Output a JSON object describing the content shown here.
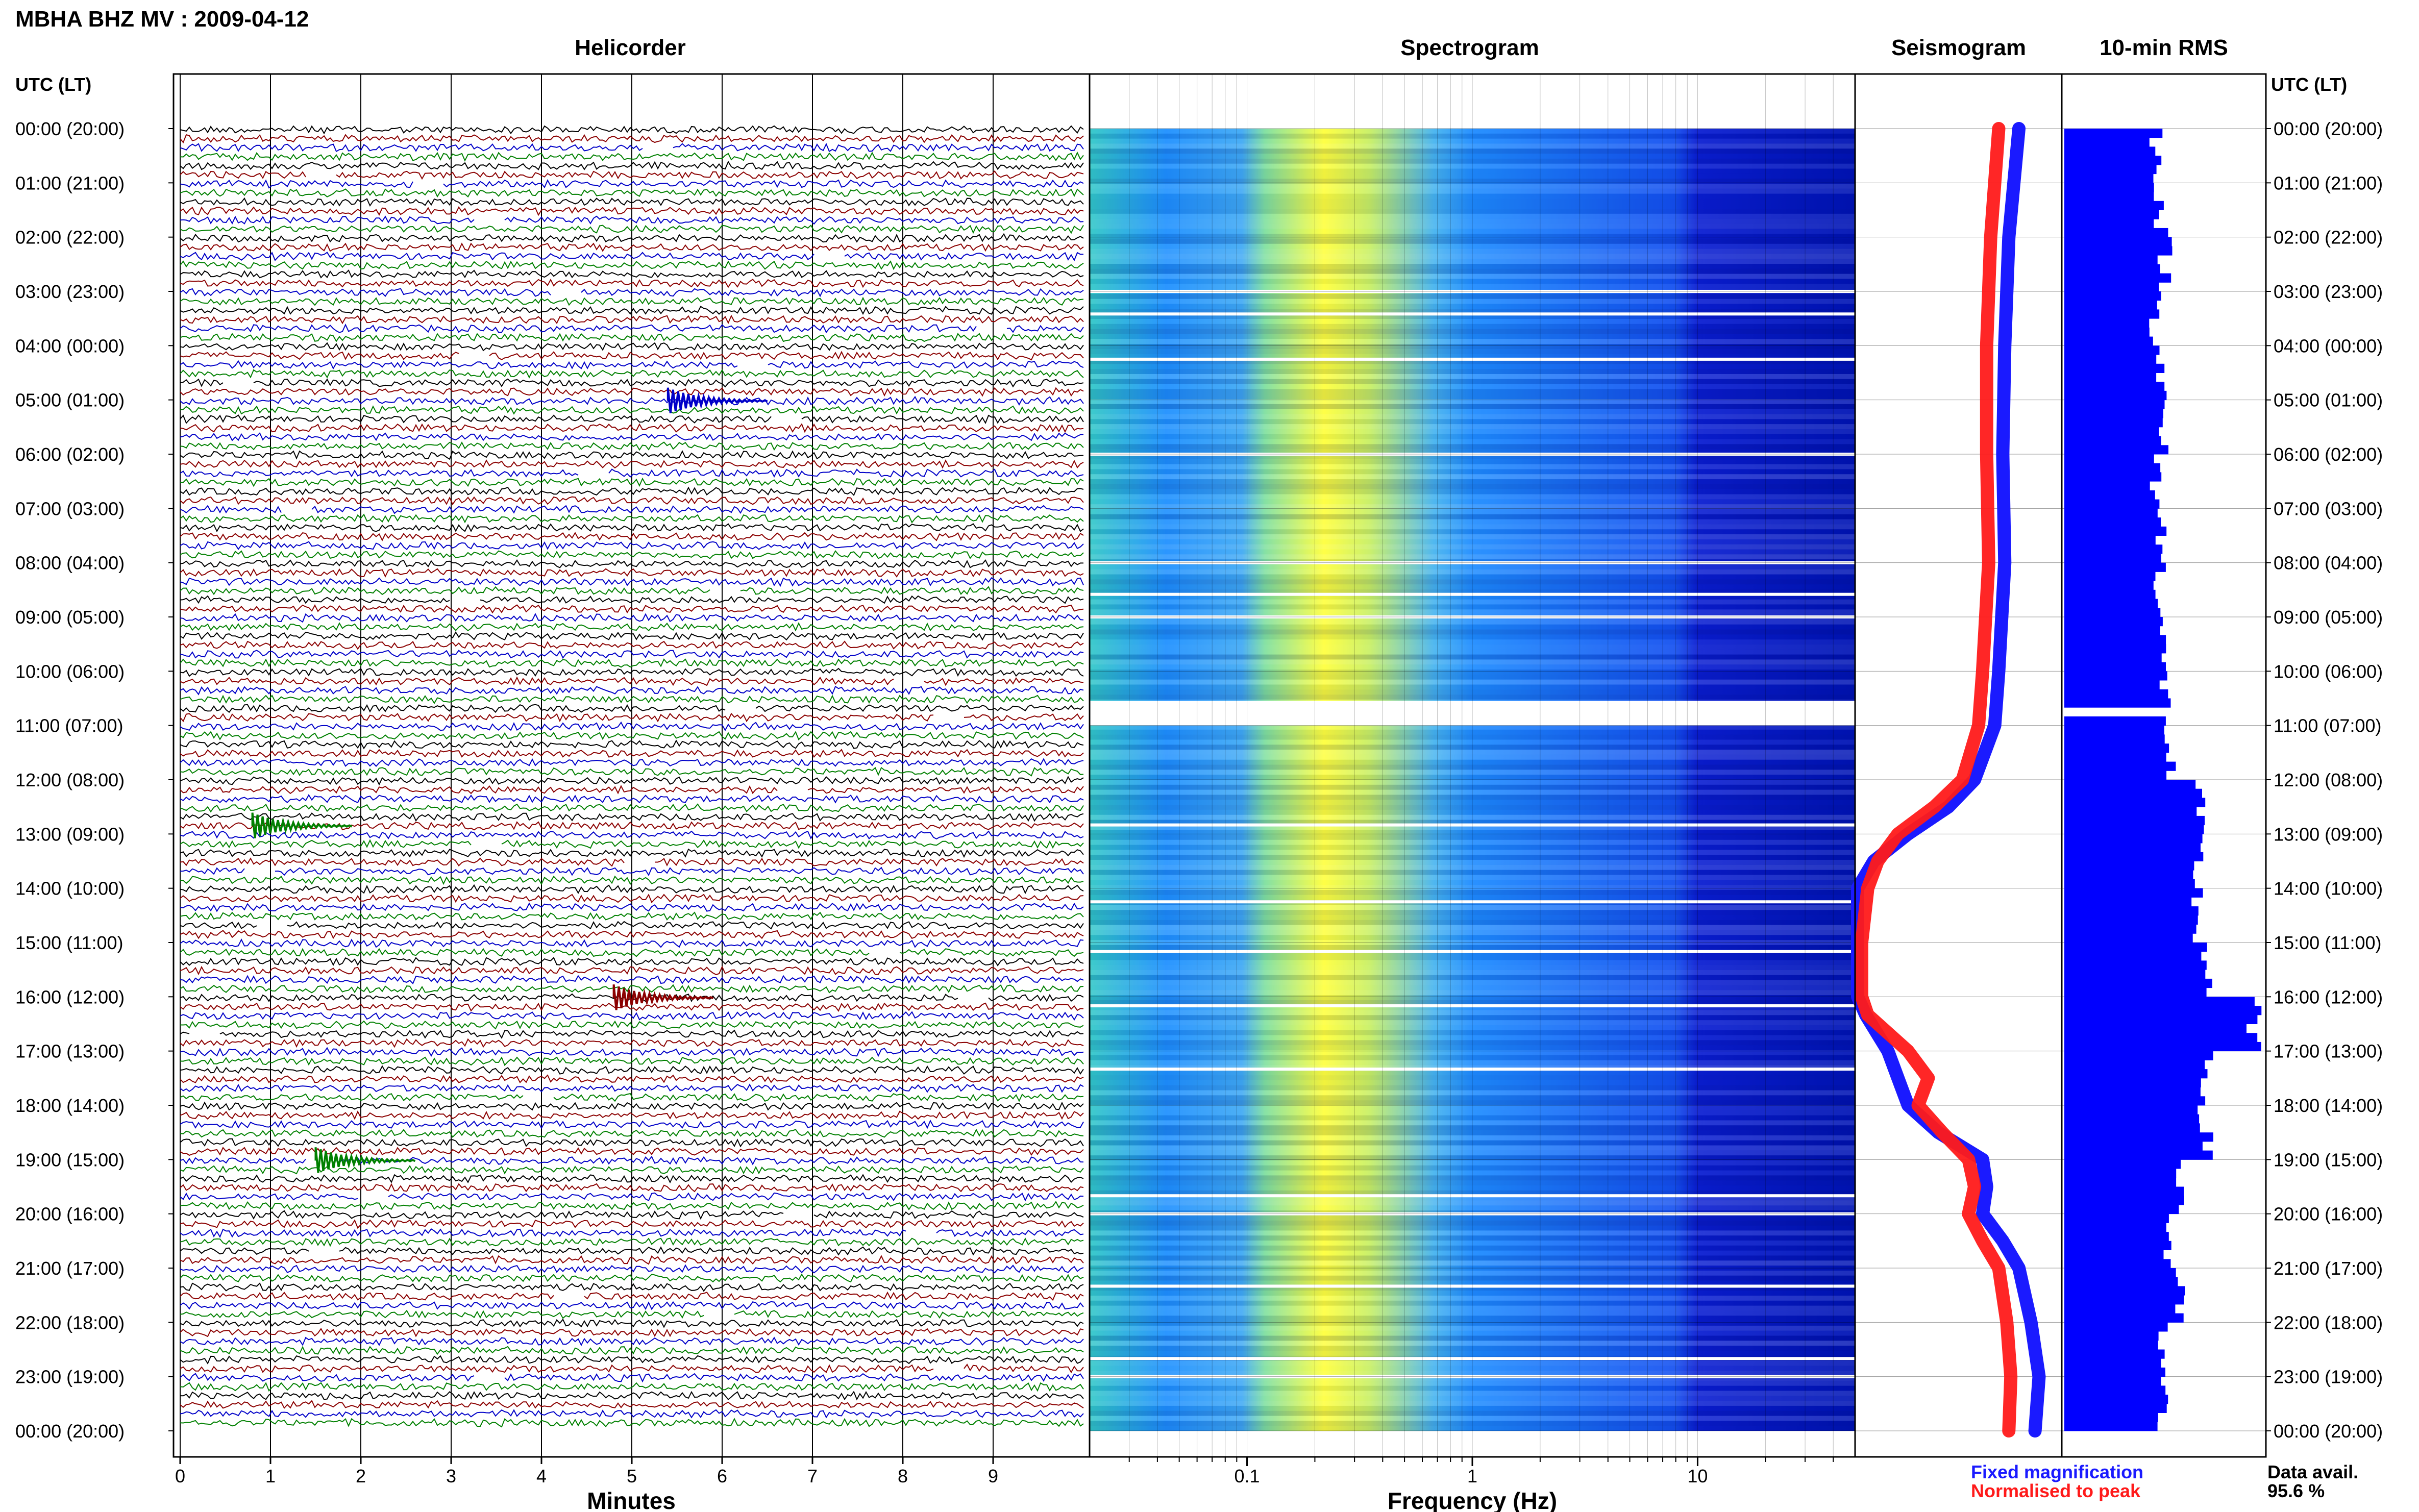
{
  "header": {
    "station_title": "MBHA BHZ MV : 2009-04-12",
    "utc_lt_left": "UTC (LT)",
    "utc_lt_right": "UTC (LT)"
  },
  "panels": {
    "helicorder": "Helicorder",
    "spectrogram": "Spectrogram",
    "seismogram": "Seismogram",
    "rms": "10-min RMS"
  },
  "axes": {
    "minutes_label": "Minutes",
    "frequency_label": "Frequency (Hz)",
    "minute_ticks": [
      "0",
      "1",
      "2",
      "3",
      "4",
      "5",
      "6",
      "7",
      "8",
      "9"
    ],
    "frequency_ticks": [
      "0.1",
      "1",
      "10"
    ]
  },
  "time_labels": [
    "00:00 (20:00)",
    "01:00 (21:00)",
    "02:00 (22:00)",
    "03:00 (23:00)",
    "04:00 (00:00)",
    "05:00 (01:00)",
    "06:00 (02:00)",
    "07:00 (03:00)",
    "08:00 (04:00)",
    "09:00 (05:00)",
    "10:00 (06:00)",
    "11:00 (07:00)",
    "12:00 (08:00)",
    "13:00 (09:00)",
    "14:00 (10:00)",
    "15:00 (11:00)",
    "16:00 (12:00)",
    "17:00 (13:00)",
    "18:00 (14:00)",
    "19:00 (15:00)",
    "20:00 (16:00)",
    "21:00 (17:00)",
    "22:00 (18:00)",
    "23:00 (19:00)",
    "00:00 (20:00)"
  ],
  "legend": {
    "fixed": "Fixed magnification",
    "normalised": "Normalised to peak",
    "fixed_color": "#1a1aff",
    "normalised_color": "#ff1a1a"
  },
  "data_availability": {
    "label": "Data avail.",
    "value": "95.6 %"
  },
  "colors": {
    "trace_colors": [
      "#000000",
      "#8b0000",
      "#0000c8",
      "#008000"
    ],
    "rms_bar": "#0000ff",
    "spectrogram_low": "#00008b",
    "spectrogram_peak": "#ffff00"
  },
  "chart_data": [
    {
      "type": "helicorder",
      "title": "Helicorder",
      "xlabel": "Minutes",
      "xlim": [
        0,
        10
      ],
      "rows": 144,
      "row_interval_minutes": 10,
      "events": [
        {
          "time_utc": "05:00",
          "minute": 5.4,
          "color": "#0000c8"
        },
        {
          "time_utc": "12:50",
          "minute": 0.8,
          "color": "#008000"
        },
        {
          "time_utc": "16:00",
          "minute": 4.8,
          "color": "#8b0000"
        },
        {
          "time_utc": "19:00",
          "minute": 1.5,
          "color": "#008000"
        }
      ]
    },
    {
      "type": "heatmap",
      "title": "Spectrogram",
      "xlabel": "Frequency (Hz)",
      "xscale": "log",
      "xlim": [
        0.02,
        50
      ],
      "peak_band_hz": [
        0.15,
        0.35
      ],
      "gap_times_utc": [
        "03:00",
        "03:25",
        "04:15",
        "06:00",
        "08:00",
        "08:35",
        "09:00",
        "10:40",
        "10:50",
        "12:50",
        "14:15",
        "15:10",
        "16:10",
        "17:20",
        "19:40",
        "20:00",
        "21:20",
        "22:40",
        "23:00"
      ]
    },
    {
      "type": "line",
      "title": "Seismogram",
      "series": [
        {
          "name": "Fixed magnification",
          "x": [
            "00:00",
            "02:00",
            "04:00",
            "06:00",
            "08:00",
            "10:00",
            "11:00",
            "12:00",
            "12:30",
            "13:00",
            "13:30",
            "14:00",
            "15:00",
            "16:00",
            "16:20",
            "17:00",
            "17:30",
            "18:00",
            "18:30",
            "19:00",
            "19:30",
            "20:00",
            "20:30",
            "21:00",
            "22:00",
            "23:00",
            "24:00"
          ],
          "values": [
            0.8,
            0.75,
            0.73,
            0.72,
            0.73,
            0.7,
            0.68,
            0.58,
            0.45,
            0.25,
            0.08,
            0.0,
            0.0,
            0.0,
            0.04,
            0.15,
            0.2,
            0.25,
            0.4,
            0.62,
            0.64,
            0.62,
            0.72,
            0.8,
            0.86,
            0.9,
            0.88
          ]
        },
        {
          "name": "Normalised to peak",
          "x": [
            "00:00",
            "02:00",
            "04:00",
            "06:00",
            "08:00",
            "10:00",
            "11:00",
            "12:00",
            "12:30",
            "13:00",
            "13:30",
            "14:00",
            "15:00",
            "16:00",
            "16:20",
            "17:00",
            "17:30",
            "18:00",
            "18:30",
            "19:00",
            "19:30",
            "20:00",
            "20:30",
            "21:00",
            "22:00",
            "23:00",
            "24:00"
          ],
          "values": [
            0.7,
            0.66,
            0.64,
            0.64,
            0.65,
            0.62,
            0.6,
            0.52,
            0.38,
            0.2,
            0.1,
            0.05,
            0.02,
            0.02,
            0.05,
            0.25,
            0.35,
            0.3,
            0.42,
            0.55,
            0.58,
            0.55,
            0.62,
            0.7,
            0.74,
            0.76,
            0.75
          ]
        }
      ]
    },
    {
      "type": "bar",
      "title": "10-min RMS",
      "orientation": "horizontal",
      "categories": [
        "00:00",
        "01:00",
        "02:00",
        "03:00",
        "04:00",
        "05:00",
        "06:00",
        "07:00",
        "08:00",
        "09:00",
        "10:00",
        "11:00",
        "12:00",
        "13:00",
        "14:00",
        "15:00",
        "16:00",
        "17:00",
        "18:00",
        "19:00",
        "20:00",
        "21:00",
        "22:00",
        "23:00"
      ],
      "values": [
        0.46,
        0.48,
        0.5,
        0.46,
        0.48,
        0.48,
        0.46,
        0.48,
        0.48,
        0.48,
        0.5,
        0.52,
        0.66,
        0.66,
        0.66,
        0.7,
        0.94,
        0.7,
        0.7,
        0.58,
        0.52,
        0.56,
        0.48,
        0.48
      ],
      "xlim": [
        0,
        1
      ]
    }
  ]
}
